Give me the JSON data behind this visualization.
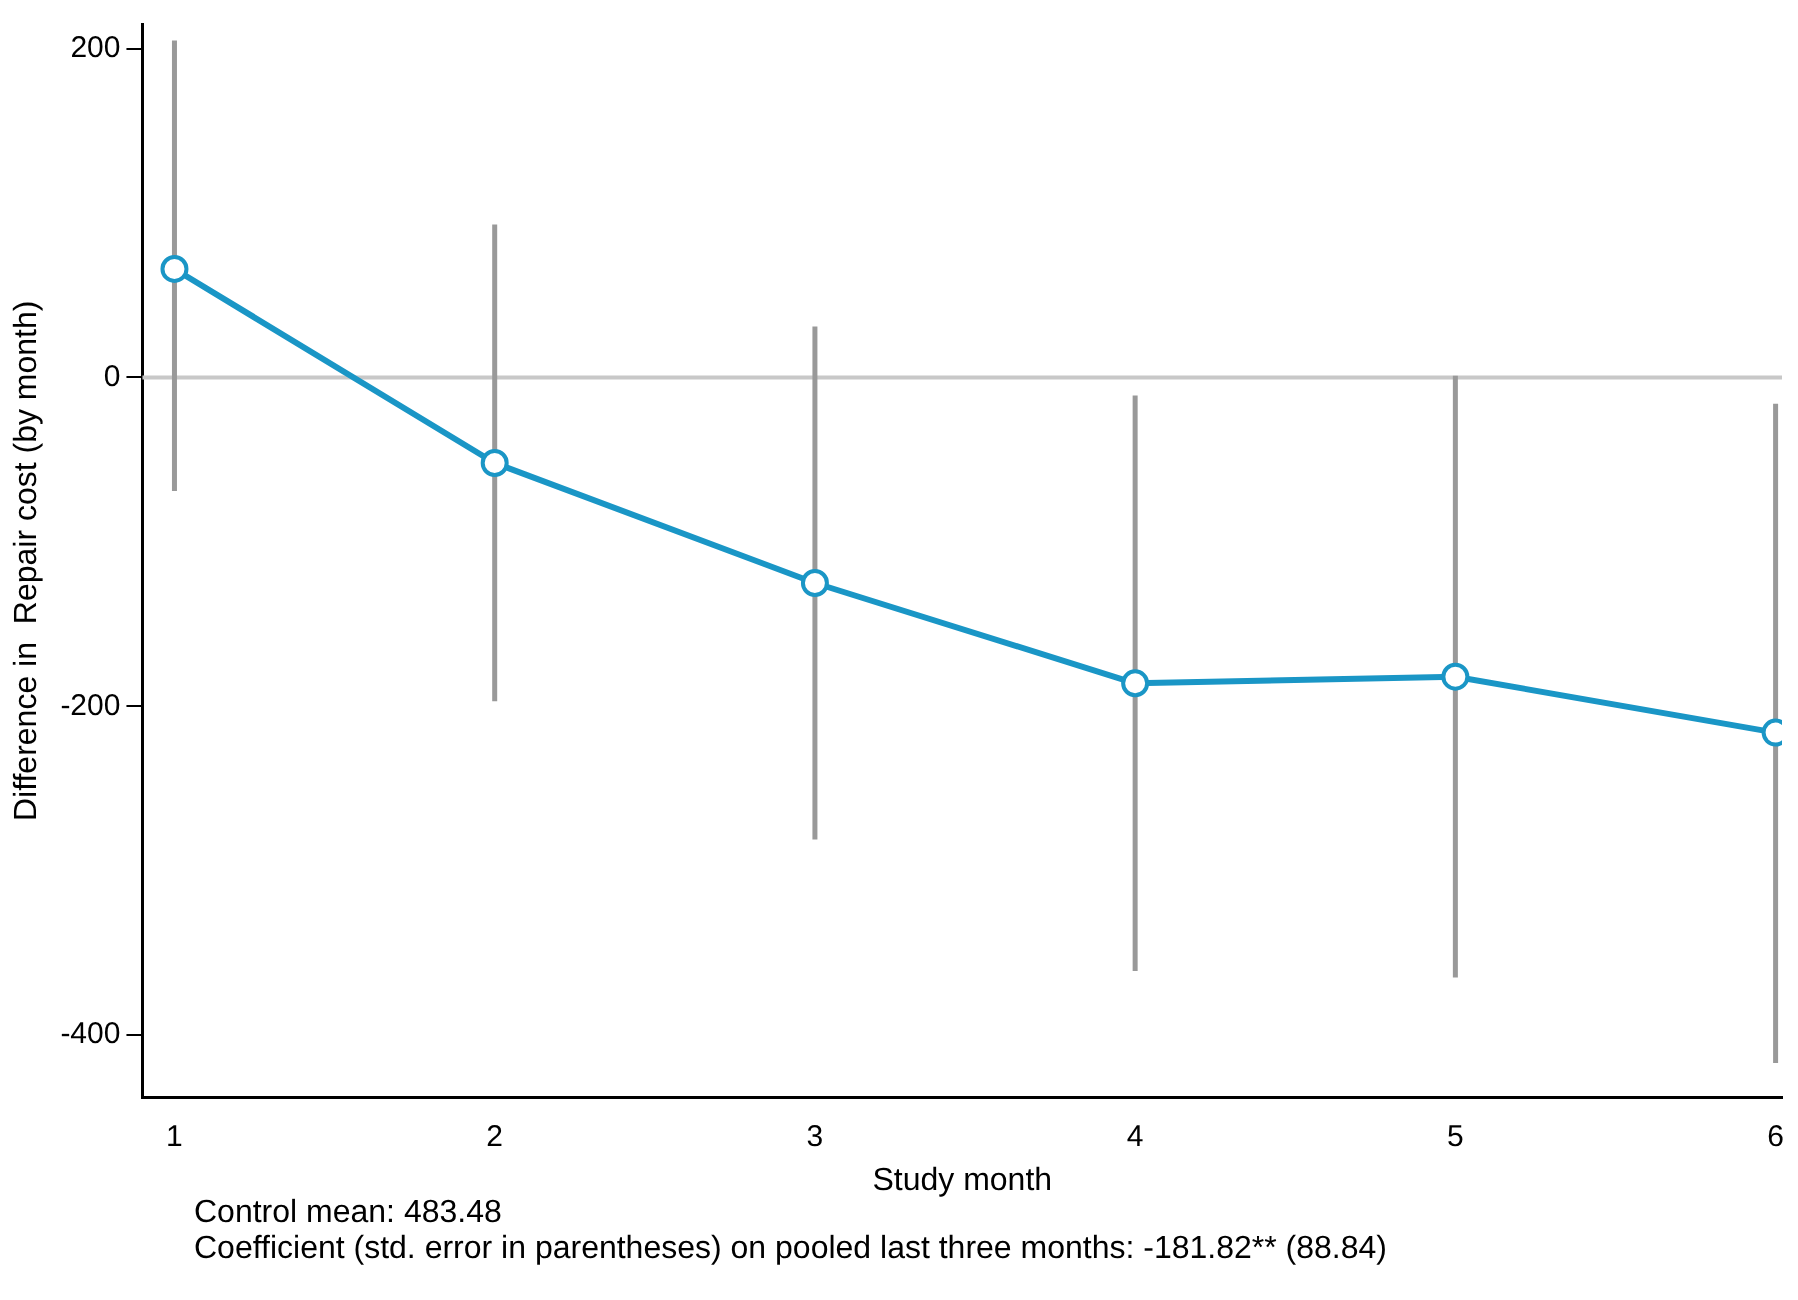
{
  "chart_data": {
    "type": "line",
    "xlabel": "Study month",
    "ylabel": "Difference in  Repair cost (by month)",
    "x": [
      1,
      2,
      3,
      4,
      5,
      6
    ],
    "series": [
      {
        "color": "#1a96c6",
        "values": [
          66,
          -52,
          -125,
          -186,
          -182,
          -216
        ],
        "errors": [
          [
            -69,
            205
          ],
          [
            -197,
            93
          ],
          [
            -281,
            31
          ],
          [
            -361,
            -11
          ],
          [
            -365,
            1
          ],
          [
            -417,
            -16
          ]
        ]
      }
    ],
    "xlim": [
      0.9,
      6.02
    ],
    "ylim": [
      -438,
      215
    ],
    "xticks": [
      1,
      2,
      3,
      4,
      5,
      6
    ],
    "yticks": [
      -400,
      -200,
      0,
      200
    ],
    "ref_lines": [
      {
        "axis": "y",
        "value": 0,
        "color": "#c8c8c8"
      }
    ],
    "grid": false,
    "legend": false,
    "marker": "circle",
    "line_style": "solid",
    "annotations": [
      "Control mean: 483.48",
      "Coefficient (std. error in parentheses) on pooled last three months: -181.82** (88.84)"
    ]
  }
}
